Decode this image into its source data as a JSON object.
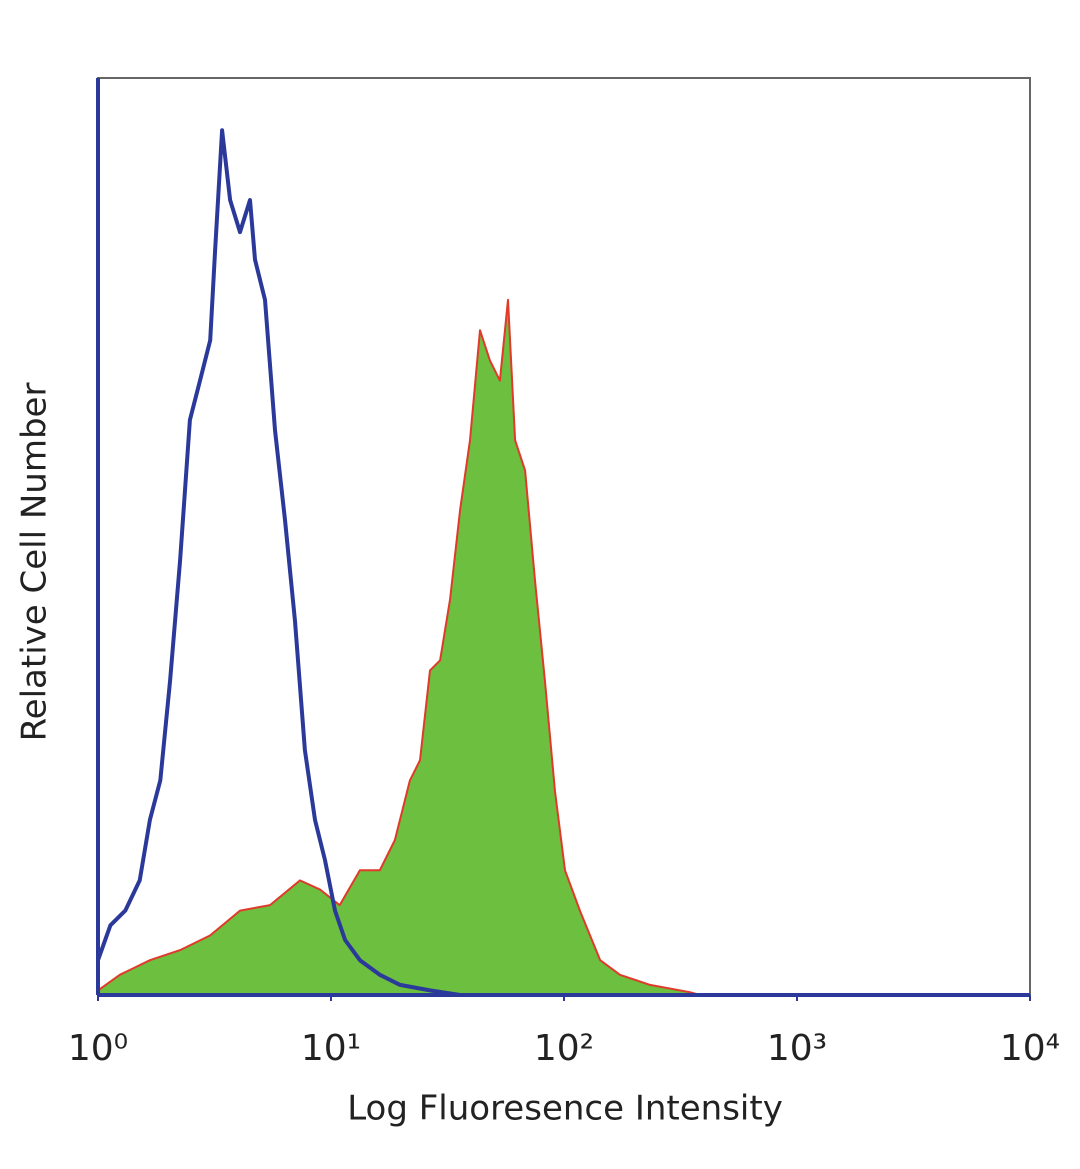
{
  "chart_data": {
    "type": "histogram-overlay",
    "xlabel": "Log Fluoresence Intensity",
    "ylabel": "Relative Cell Number",
    "xscale": "log",
    "xlim": [
      1,
      10000
    ],
    "ylim": [
      0,
      100
    ],
    "xticks": [
      {
        "value": 1,
        "label": "10⁰"
      },
      {
        "value": 10,
        "label": "10¹"
      },
      {
        "value": 100,
        "label": "10²"
      },
      {
        "value": 1000,
        "label": "10³"
      },
      {
        "value": 10000,
        "label": "10⁴"
      }
    ],
    "series": [
      {
        "color": "#2b3a9a",
        "fill": "none",
        "x": [
          1,
          1.13,
          1.31,
          1.51,
          1.67,
          1.85,
          2.04,
          2.25,
          2.48,
          2.74,
          3.03,
          3.18,
          3.41,
          3.69,
          4.07,
          4.49,
          4.72,
          5.21,
          5.75,
          6.35,
          7.0,
          7.73,
          8.54,
          9.42,
          10.4,
          11.5,
          13.3,
          16.2,
          19.8,
          26.6,
          35.8
        ],
        "values": [
          3.8,
          7.6,
          9.2,
          12.5,
          19.1,
          23.4,
          34.3,
          47.4,
          62.7,
          67.0,
          71.4,
          81.2,
          94.3,
          86.7,
          83.2,
          86.7,
          80.2,
          75.8,
          61.6,
          51.8,
          40.9,
          26.7,
          19.1,
          14.7,
          9.2,
          6.0,
          3.8,
          2.2,
          1.1,
          0.5,
          0
        ]
      },
      {
        "color": "#e03a2a",
        "fill": "#6cbf3f",
        "x": [
          1,
          1.24,
          1.67,
          2.25,
          3.03,
          4.07,
          5.47,
          7.36,
          8.97,
          10.9,
          13.3,
          16.2,
          18.8,
          21.8,
          24.1,
          26.6,
          29.4,
          32.4,
          35.8,
          39.5,
          43.6,
          48.1,
          53.1,
          57.5,
          61.7,
          68.1,
          75.1,
          82.8,
          91.5,
          101,
          117,
          143,
          174,
          234,
          347,
          384
        ],
        "values": [
          0.5,
          2.2,
          3.8,
          4.9,
          6.5,
          9.2,
          9.8,
          12.5,
          11.5,
          9.8,
          13.6,
          13.6,
          16.9,
          23.4,
          25.6,
          35.4,
          36.5,
          43.1,
          52.9,
          60.5,
          72.5,
          69.2,
          67.0,
          75.8,
          60.5,
          57.2,
          45.2,
          34.3,
          22.2,
          13.6,
          9.2,
          3.8,
          2.2,
          1.1,
          0.3,
          0
        ]
      }
    ]
  }
}
